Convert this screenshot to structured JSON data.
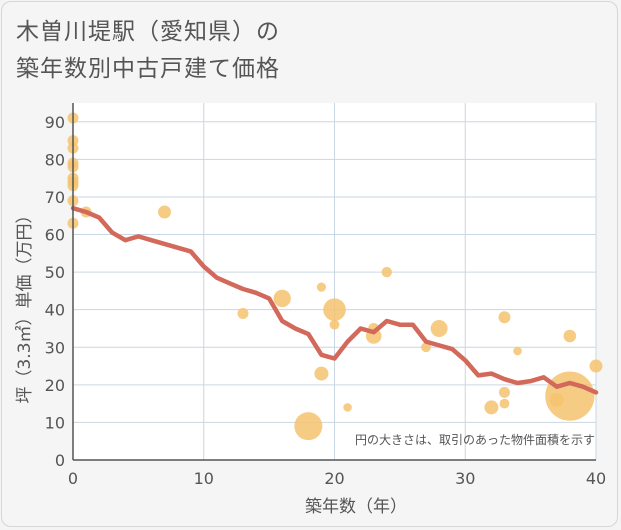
{
  "title_line1": "木曽川堤駅（愛知県）の",
  "title_line2": "築年数別中古戸建て価格",
  "chart_data": {
    "type": "scatter",
    "xlabel": "築年数（年）",
    "ylabel": "坪（3.3㎡）単価（万円）",
    "note": "円の大きさは、取引のあった物件面積を示す",
    "xlim": [
      0,
      40
    ],
    "ylim": [
      0,
      95
    ],
    "x_ticks": [
      0,
      10,
      20,
      30,
      40
    ],
    "y_ticks": [
      0,
      10,
      20,
      30,
      40,
      50,
      60,
      70,
      80,
      90
    ],
    "grid": true,
    "colors": {
      "bubble": "#f5c36e",
      "line": "#d2695a",
      "grid": "#c9d6e3"
    },
    "points": [
      {
        "x": 0,
        "y": 91,
        "size": 1.0
      },
      {
        "x": 0,
        "y": 85,
        "size": 1.0
      },
      {
        "x": 0,
        "y": 83,
        "size": 1.0
      },
      {
        "x": 0,
        "y": 79,
        "size": 1.0
      },
      {
        "x": 0,
        "y": 78,
        "size": 1.0
      },
      {
        "x": 0,
        "y": 75,
        "size": 1.0
      },
      {
        "x": 0,
        "y": 74,
        "size": 1.0
      },
      {
        "x": 0,
        "y": 73,
        "size": 1.0
      },
      {
        "x": 0,
        "y": 69,
        "size": 1.0
      },
      {
        "x": 0,
        "y": 63,
        "size": 1.0
      },
      {
        "x": 1,
        "y": 66,
        "size": 1.0
      },
      {
        "x": 7,
        "y": 66,
        "size": 1.4
      },
      {
        "x": 13,
        "y": 39,
        "size": 1.0
      },
      {
        "x": 16,
        "y": 43,
        "size": 2.5
      },
      {
        "x": 18,
        "y": 9,
        "size": 6.5
      },
      {
        "x": 19,
        "y": 46,
        "size": 0.7
      },
      {
        "x": 19,
        "y": 23,
        "size": 1.6
      },
      {
        "x": 20,
        "y": 40,
        "size": 4.2
      },
      {
        "x": 20,
        "y": 36,
        "size": 0.8
      },
      {
        "x": 21,
        "y": 14,
        "size": 0.6
      },
      {
        "x": 23,
        "y": 35,
        "size": 1.0
      },
      {
        "x": 23,
        "y": 33,
        "size": 2.0
      },
      {
        "x": 24,
        "y": 50,
        "size": 0.9
      },
      {
        "x": 27,
        "y": 30,
        "size": 0.8
      },
      {
        "x": 28,
        "y": 35,
        "size": 2.4
      },
      {
        "x": 32,
        "y": 14,
        "size": 1.6
      },
      {
        "x": 33,
        "y": 38,
        "size": 1.2
      },
      {
        "x": 33,
        "y": 18,
        "size": 1.0
      },
      {
        "x": 33,
        "y": 15,
        "size": 0.8
      },
      {
        "x": 34,
        "y": 29,
        "size": 0.6
      },
      {
        "x": 37,
        "y": 16,
        "size": 1.6
      },
      {
        "x": 38,
        "y": 17,
        "size": 20.0
      },
      {
        "x": 38,
        "y": 33,
        "size": 1.3
      },
      {
        "x": 40,
        "y": 25,
        "size": 1.4
      }
    ],
    "trend": {
      "x": [
        0,
        1,
        2,
        3,
        4,
        5,
        6,
        7,
        8,
        9,
        10,
        11,
        12,
        13,
        14,
        15,
        16,
        17,
        18,
        19,
        20,
        21,
        22,
        23,
        24,
        25,
        26,
        27,
        28,
        29,
        30,
        31,
        32,
        33,
        34,
        35,
        36,
        37,
        38,
        39,
        40
      ],
      "y": [
        67,
        66,
        64.5,
        60.5,
        58.5,
        59.5,
        58.5,
        57.5,
        56.5,
        55.5,
        51.5,
        48.5,
        47,
        45.5,
        44.5,
        43,
        37,
        35,
        33.5,
        28,
        27,
        31.5,
        35,
        34,
        37,
        36,
        36,
        31.5,
        30.5,
        29.5,
        26.5,
        22.5,
        23,
        21.5,
        20.5,
        21,
        22,
        19.5,
        20.5,
        19.5,
        18
      ]
    }
  }
}
